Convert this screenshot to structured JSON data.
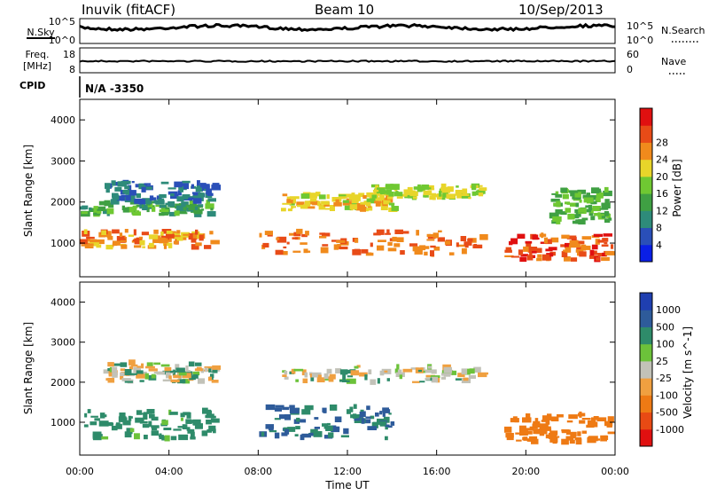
{
  "header": {
    "station": "Inuvik (fitACF)",
    "beam": "Beam 10",
    "date": "10/Sep/2013"
  },
  "status_panels": {
    "nsky_label": "N.Sky",
    "nsearch_label": "N.Search",
    "freq_label": "Freq.",
    "freq_unit": "[MHz]",
    "nave_label": "Nave",
    "cpid_label": "CPID",
    "cpid_value": "N/A  -3350",
    "noise_ticks": [
      "10^5",
      "10^0"
    ],
    "freq_ticks": [
      "18",
      "8"
    ],
    "nave_ticks": [
      "60",
      "0"
    ]
  },
  "chart_data": [
    {
      "type": "heatmap",
      "title": "Power",
      "xlabel": "Time UT",
      "ylabel": "Slant Range [km]",
      "xlim": [
        "00:00",
        "00:00"
      ],
      "x_ticks": [
        "00:00",
        "04:00",
        "08:00",
        "12:00",
        "16:00",
        "20:00",
        "00:00"
      ],
      "ylim": [
        180,
        4500
      ],
      "y_ticks": [
        1000,
        2000,
        3000,
        4000
      ],
      "colorbar": {
        "label": "Power [dB]",
        "ticks": [
          4,
          8,
          12,
          16,
          20,
          24,
          28
        ],
        "colors": [
          "#0a1fe6",
          "#2a4fb8",
          "#2e8b7a",
          "#3fa043",
          "#6fc832",
          "#e8d52a",
          "#f08a1c",
          "#e84b17",
          "#e01010"
        ]
      },
      "bands": [
        {
          "range": [
            900,
            1300
          ],
          "time": [
            0,
            6
          ],
          "level": 24
        },
        {
          "range": [
            1700,
            2000
          ],
          "time": [
            0,
            6
          ],
          "level": 12
        },
        {
          "range": [
            2000,
            2500
          ],
          "time": [
            1,
            6
          ],
          "level": 6
        },
        {
          "range": [
            700,
            1300
          ],
          "time": [
            8,
            18
          ],
          "level": 26
        },
        {
          "range": [
            1800,
            2200
          ],
          "time": [
            9,
            14
          ],
          "level": 20
        },
        {
          "range": [
            2100,
            2400
          ],
          "time": [
            13,
            18
          ],
          "level": 18
        },
        {
          "range": [
            600,
            1200
          ],
          "time": [
            19,
            24
          ],
          "level": 27
        },
        {
          "range": [
            1500,
            2300
          ],
          "time": [
            21,
            24
          ],
          "level": 14
        }
      ]
    },
    {
      "type": "heatmap",
      "title": "Velocity",
      "xlabel": "Time UT",
      "ylabel": "Slant Range [km]",
      "xlim": [
        "00:00",
        "00:00"
      ],
      "x_ticks": [
        "00:00",
        "04:00",
        "08:00",
        "12:00",
        "16:00",
        "20:00",
        "00:00"
      ],
      "ylim": [
        180,
        4500
      ],
      "y_ticks": [
        1000,
        2000,
        3000,
        4000
      ],
      "colorbar": {
        "label": "Velocity [m s^-1]",
        "ticks": [
          1000,
          500,
          100,
          25,
          -25,
          -100,
          -500,
          -1000
        ],
        "colors": [
          "#1f3fb0",
          "#2e5b9a",
          "#2e8b6a",
          "#6cc23a",
          "#c2c2b8",
          "#f0a040",
          "#ee7a14",
          "#e84a14",
          "#e01010"
        ]
      },
      "bands": [
        {
          "range": [
            2000,
            2500
          ],
          "time": [
            1,
            6
          ],
          "value": 0
        },
        {
          "range": [
            600,
            1300
          ],
          "time": [
            0,
            6
          ],
          "value": 150
        },
        {
          "range": [
            600,
            1400
          ],
          "time": [
            8,
            14
          ],
          "value": 300
        },
        {
          "range": [
            2000,
            2400
          ],
          "time": [
            9,
            18
          ],
          "value": 0
        },
        {
          "range": [
            500,
            1200
          ],
          "time": [
            19,
            24
          ],
          "value": -400
        }
      ]
    }
  ]
}
